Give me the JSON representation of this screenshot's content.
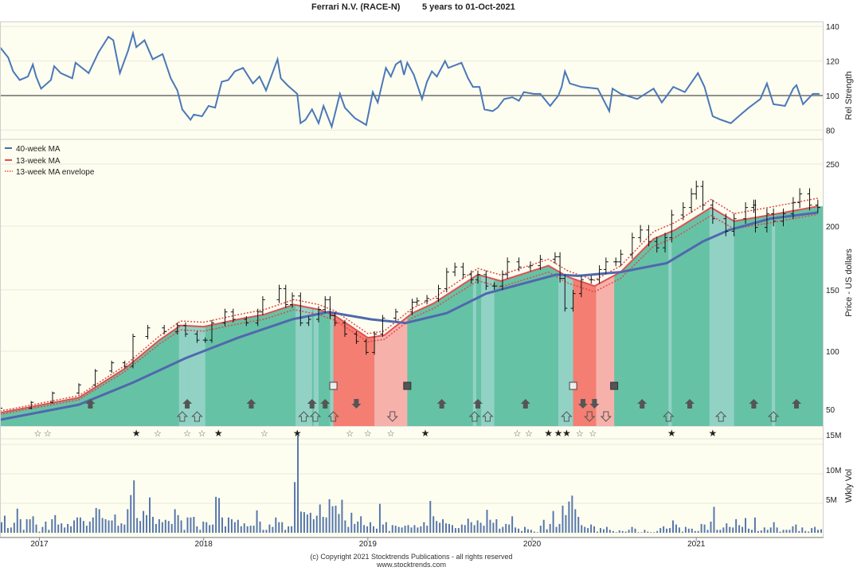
{
  "title": {
    "company": "Ferrari N.V. (RACE-N)",
    "period": "5 years to 01-Oct-2021"
  },
  "footer": {
    "copyright": "(c) Copyright 2021 Stocktrends Publications - all rights reserved",
    "website": "www.stocktrends.com"
  },
  "colors": {
    "background": "#fefef0",
    "grid": "#e9e9dc",
    "rs_line": "#4a78b8",
    "rs_baseline": "#6b6b6b",
    "ma40": "#5068ad",
    "ma13": "#e05050",
    "envelope": "#e04848",
    "zone_bull": "#66c2a5",
    "zone_weak_bull": "#91d2c5",
    "zone_bear": "#f47e72",
    "zone_weak_bear": "#f7b1ab",
    "marker": "#555555",
    "volume": "#5575ab",
    "price_bar": "#111111"
  },
  "chart_data": [
    {
      "type": "line",
      "ylabel": "Rel Strength",
      "ylim": [
        75,
        145
      ],
      "yticks": [
        140,
        120,
        100,
        80
      ],
      "baseline": 100,
      "grid": true,
      "x": [
        2016.76,
        2016.81,
        2016.84,
        2016.88,
        2016.93,
        2016.96,
        2016.98,
        2017.01,
        2017.07,
        2017.09,
        2017.13,
        2017.2,
        2017.22,
        2017.3,
        2017.36,
        2017.42,
        2017.45,
        2017.49,
        2017.54,
        2017.57,
        2017.59,
        2017.64,
        2017.69,
        2017.75,
        2017.8,
        2017.84,
        2017.87,
        2017.92,
        2017.94,
        2017.99,
        2018.03,
        2018.07,
        2018.11,
        2018.15,
        2018.19,
        2018.24,
        2018.3,
        2018.34,
        2018.38,
        2018.45,
        2018.47,
        2018.51,
        2018.57,
        2018.59,
        2018.62,
        2018.66,
        2018.7,
        2018.73,
        2018.78,
        2018.83,
        2018.86,
        2018.92,
        2018.99,
        2019.03,
        2019.06,
        2019.11,
        2019.14,
        2019.17,
        2019.2,
        2019.22,
        2019.24,
        2019.28,
        2019.33,
        2019.36,
        2019.39,
        2019.42,
        2019.47,
        2019.49,
        2019.57,
        2019.61,
        2019.64,
        2019.68,
        2019.71,
        2019.76,
        2019.79,
        2019.83,
        2019.88,
        2019.92,
        2019.95,
        2020.01,
        2020.05,
        2020.11,
        2020.16,
        2020.18,
        2020.2,
        2020.23,
        2020.3,
        2020.4,
        2020.47,
        2020.49,
        2020.54,
        2020.64,
        2020.74,
        2020.79,
        2020.86,
        2020.93,
        2021.01,
        2021.05,
        2021.1,
        2021.15,
        2021.21,
        2021.27,
        2021.32,
        2021.39,
        2021.43,
        2021.47,
        2021.54,
        2021.59,
        2021.61,
        2021.65,
        2021.68,
        2021.71,
        2021.75
      ],
      "values": [
        128,
        122,
        114,
        109,
        111,
        118,
        111,
        104,
        109,
        117,
        113,
        110,
        119,
        113,
        125,
        134,
        132,
        113,
        126,
        136,
        128,
        132,
        121,
        124,
        110,
        103,
        92,
        86,
        89,
        88,
        94,
        93,
        108,
        109,
        114,
        116,
        107,
        111,
        103,
        121,
        110,
        106,
        101,
        84,
        86,
        92,
        84,
        94,
        82,
        101,
        93,
        87,
        83,
        102,
        96,
        116,
        111,
        118,
        120,
        112,
        119,
        112,
        98,
        108,
        114,
        111,
        120,
        116,
        119,
        110,
        105,
        105,
        92,
        91,
        93,
        98,
        99,
        97,
        102,
        101,
        101,
        94,
        100,
        105,
        114,
        107,
        105,
        104,
        91,
        104,
        101,
        98,
        104,
        96,
        105,
        102,
        113,
        105,
        88,
        86,
        84,
        89,
        93,
        98,
        107,
        95,
        94,
        104,
        106,
        95,
        98,
        101,
        101
      ]
    },
    {
      "type": "ohlc",
      "ylabel": "Price - US dollars",
      "yticks": [
        50,
        100,
        150,
        200,
        250
      ],
      "xlim": [
        2016.76,
        2021.77
      ],
      "xticks": [
        "2017",
        "2018",
        "2019",
        "2020",
        "2021"
      ],
      "grid": true,
      "legend_position": "top-left",
      "legend": [
        {
          "label": "40-week MA",
          "style": "solid",
          "color_key": "ma40"
        },
        {
          "label": "13-week MA",
          "style": "solid",
          "color_key": "ma13"
        },
        {
          "label": "13-week MA envelope",
          "style": "dotted",
          "color_key": "envelope"
        }
      ],
      "price": {
        "x": [
          2016.76,
          2016.95,
          2017.08,
          2017.24,
          2017.34,
          2017.44,
          2017.52,
          2017.57,
          2017.66,
          2017.76,
          2017.84,
          2017.89,
          2017.96,
          2018.01,
          2018.05,
          2018.13,
          2018.18,
          2018.26,
          2018.33,
          2018.36,
          2018.46,
          2018.5,
          2018.54,
          2018.59,
          2018.64,
          2018.7,
          2018.74,
          2018.77,
          2018.8,
          2018.86,
          2018.93,
          2018.99,
          2019.04,
          2019.09,
          2019.17,
          2019.27,
          2019.3,
          2019.36,
          2019.43,
          2019.48,
          2019.53,
          2019.58,
          2019.63,
          2019.67,
          2019.72,
          2019.77,
          2019.82,
          2019.85,
          2019.92,
          2019.99,
          2020.05,
          2020.14,
          2020.17,
          2020.2,
          2020.25,
          2020.3,
          2020.36,
          2020.41,
          2020.45,
          2020.51,
          2020.54,
          2020.61,
          2020.66,
          2020.71,
          2020.76,
          2020.81,
          2020.85,
          2020.92,
          2020.97,
          2021.0,
          2021.04,
          2021.1,
          2021.18,
          2021.23,
          2021.3,
          2021.35,
          2021.36,
          2021.43,
          2021.47,
          2021.53,
          2021.59,
          2021.63,
          2021.69,
          2021.74
        ],
        "close": [
          51,
          56,
          64,
          71,
          83,
          90,
          87,
          112,
          119,
          116,
          121,
          114,
          109,
          109,
          123,
          132,
          126,
          123,
          132,
          142,
          151,
          138,
          145,
          123,
          126,
          134,
          142,
          129,
          123,
          114,
          108,
          99,
          114,
          127,
          132,
          140,
          141,
          143,
          151,
          164,
          168,
          162,
          158,
          162,
          153,
          153,
          162,
          172,
          168,
          169,
          174,
          176,
          159,
          135,
          147,
          158,
          158,
          166,
          172,
          172,
          178,
          191,
          197,
          188,
          183,
          191,
          209,
          215,
          226,
          232,
          217,
          206,
          196,
          206,
          215,
          217,
          199,
          210,
          204,
          210,
          219,
          226,
          217,
          215
        ]
      },
      "ma40": {
        "x": [
          2016.76,
          2017.24,
          2017.57,
          2017.89,
          2018.21,
          2018.54,
          2018.76,
          2019.02,
          2019.23,
          2019.48,
          2019.72,
          2020.15,
          2020.28,
          2020.54,
          2020.82,
          2021.04,
          2021.2,
          2021.45,
          2021.74
        ],
        "values": [
          41,
          54,
          73,
          94,
          111,
          126,
          132,
          126,
          123,
          131,
          147,
          162,
          161,
          164,
          171,
          188,
          197,
          206,
          211
        ]
      },
      "ma13": {
        "x": [
          2016.76,
          2017.24,
          2017.52,
          2017.73,
          2017.86,
          2018.0,
          2018.21,
          2018.37,
          2018.55,
          2018.7,
          2018.8,
          2019.0,
          2019.1,
          2019.27,
          2019.4,
          2019.67,
          2019.81,
          2020.1,
          2020.22,
          2020.38,
          2020.54,
          2020.74,
          2020.87,
          2021.09,
          2021.23,
          2021.45,
          2021.74
        ],
        "values": [
          47,
          60,
          85,
          109,
          121,
          120,
          126,
          130,
          138,
          134,
          129,
          111,
          113,
          131,
          139,
          162,
          157,
          169,
          160,
          153,
          164,
          190,
          197,
          215,
          204,
          209,
          216
        ]
      },
      "envelope_pct": 3,
      "trend_zones": [
        {
          "from": 2017.85,
          "to": 2017.91,
          "color_key": "zone_weak_bull"
        },
        {
          "from": 2017.91,
          "to": 2018.01,
          "color_key": "zone_weak_bull"
        },
        {
          "from": 2018.56,
          "to": 2018.66,
          "color_key": "zone_weak_bull"
        },
        {
          "from": 2018.67,
          "to": 2018.7,
          "color_key": "zone_weak_bull"
        },
        {
          "from": 2018.77,
          "to": 2018.79,
          "color_key": "zone_weak_bull"
        },
        {
          "from": 2018.79,
          "to": 2019.04,
          "color_key": "zone_bear"
        },
        {
          "from": 2019.04,
          "to": 2019.24,
          "color_key": "zone_weak_bear"
        },
        {
          "from": 2019.64,
          "to": 2019.66,
          "color_key": "zone_weak_bull"
        },
        {
          "from": 2019.69,
          "to": 2019.77,
          "color_key": "zone_weak_bull"
        },
        {
          "from": 2020.16,
          "to": 2020.25,
          "color_key": "zone_weak_bull"
        },
        {
          "from": 2020.25,
          "to": 2020.39,
          "color_key": "zone_bear"
        },
        {
          "from": 2020.39,
          "to": 2020.5,
          "color_key": "zone_weak_bear"
        },
        {
          "from": 2020.83,
          "to": 2020.85,
          "color_key": "zone_weak_bull"
        },
        {
          "from": 2021.08,
          "to": 2021.23,
          "color_key": "zone_weak_bull"
        },
        {
          "from": 2021.46,
          "to": 2021.48,
          "color_key": "zone_weak_bull"
        }
      ],
      "signals": {
        "up_filled": [
          2017.31,
          2017.9,
          2018.29,
          2018.66,
          2018.74,
          2019.45,
          2019.67,
          2019.96,
          2020.67,
          2020.96,
          2021.35,
          2021.61
        ],
        "up_outline": [
          2017.87,
          2017.96,
          2018.61,
          2018.68,
          2018.79,
          2019.65,
          2019.73,
          2020.21,
          2020.83,
          2021.15,
          2021.47
        ],
        "down_filled": [
          2018.93,
          2020.31,
          2020.38
        ],
        "down_outline": [
          2019.15,
          2020.35,
          2020.45
        ],
        "square_outline": [
          2018.79,
          2020.25
        ],
        "square_filled": [
          2019.24,
          2020.5
        ],
        "star_outline": [
          2016.99,
          2017.05,
          2017.72,
          2017.9,
          2017.99,
          2018.37,
          2018.89,
          2019.0,
          2019.14,
          2019.91,
          2019.98,
          2020.29,
          2020.37
        ],
        "star_filled": [
          2017.59,
          2018.09,
          2018.57,
          2019.35,
          2020.1,
          2020.16,
          2020.21,
          2020.85,
          2021.1
        ]
      }
    },
    {
      "type": "bar",
      "ylabel": "Wkly Vol",
      "yticks": [
        "15M",
        "10M",
        "5M"
      ],
      "ytick_values": [
        15,
        10,
        5
      ],
      "unit": "millions",
      "values": [
        1.8,
        2.9,
        0.8,
        0.9,
        1.7,
        4.1,
        2.3,
        0.5,
        2.3,
        2.3,
        2.8,
        1.4,
        0.2,
        1.0,
        1.9,
        0.5,
        2.3,
        3.0,
        1.4,
        1.6,
        0.9,
        1.5,
        1.1,
        2.1,
        2.6,
        2.6,
        2.0,
        1.2,
        1.9,
        2.6,
        4.2,
        4.0,
        2.5,
        2.3,
        2.1,
        2.1,
        3.1,
        1.2,
        1.6,
        1.4,
        4.0,
        6.4,
        8.9,
        2.5,
        2.0,
        3.7,
        3.0,
        6.0,
        2.7,
        1.5,
        2.3,
        1.8,
        2.2,
        2.0,
        1.5,
        4.0,
        3.0,
        2.1,
        0.5,
        2.6,
        2.6,
        2.7,
        1.1,
        0.5,
        1.9,
        1.8,
        1.3,
        1.4,
        6.1,
        5.9,
        2.6,
        1.1,
        2.6,
        2.3,
        1.8,
        2.2,
        1.1,
        1.6,
        1.1,
        1.2,
        1.2,
        3.8,
        1.9,
        0.5,
        0.5,
        1.4,
        1.0,
        2.6,
        1.8,
        1.8,
        0.5,
        1.1,
        1.1,
        8.6,
        16.5,
        3.6,
        3.5,
        3.1,
        3.4,
        2.3,
        2.9,
        4.8,
        2.7,
        2.6,
        5.7,
        4.5,
        4.6,
        3.2,
        5.6,
        2.1,
        1.0,
        3.4,
        1.5,
        1.9,
        2.8,
        1.3,
        1.1,
        1.8,
        1.1,
        0.7,
        4.9,
        1.4,
        1.8,
        0.3,
        1.3,
        1.2,
        1.0,
        0.9,
        1.2,
        1.3,
        0.9,
        1.3,
        0.9,
        1.1,
        1.8,
        1.2,
        5.4,
        2.8,
        2.0,
        1.7,
        2.3,
        1.6,
        1.5,
        1.3,
        0.8,
        0.8,
        1.4,
        1.3,
        2.4,
        1.8,
        1.3,
        2.1,
        1.7,
        1.2,
        3.9,
        2.2,
        1.7,
        2.3,
        0.7,
        1.0,
        1.5,
        1.4,
        2.8,
        0.9,
        0.7,
        0.3,
        1.0,
        0.6,
        0.5,
        0.2,
        0.1,
        1.2,
        2.2,
        0.6,
        1.5,
        3.7,
        1.0,
        1.5,
        4.6,
        3.0,
        5.3,
        6.3,
        4.0,
        2.7,
        1.3,
        1.0,
        0.8,
        1.4,
        1.1,
        0.2,
        0.8,
        0.6,
        1.0,
        0.5,
        0.3,
        0.1,
        0.4,
        0.3,
        0.2,
        0.5,
        1.0,
        0.7,
        0.1,
        0.1,
        0.5,
        0.2,
        0.1,
        0.1,
        0.3,
        0.8,
        1.1,
        0.7,
        0.8,
        2.1,
        1.4,
        0.9,
        0.2,
        1.0,
        0.7,
        0.7,
        0.3,
        0.3,
        1.5,
        1.4,
        0.5,
        1.9,
        4.4,
        0.5,
        0.5,
        0.9,
        1.6,
        1.0,
        0.9,
        2.3,
        1.3,
        1.0,
        2.5,
        0.7,
        0.5,
        2.6,
        0.3,
        0.4,
        0.9,
        0.5,
        0.9,
        1.8,
        0.9,
        0.2,
        0.5,
        0.5,
        0.5,
        1.1,
        1.4,
        0.3,
        0.9,
        0.3,
        0.2,
        0.8,
        1.0,
        0.5,
        0.6
      ]
    }
  ]
}
